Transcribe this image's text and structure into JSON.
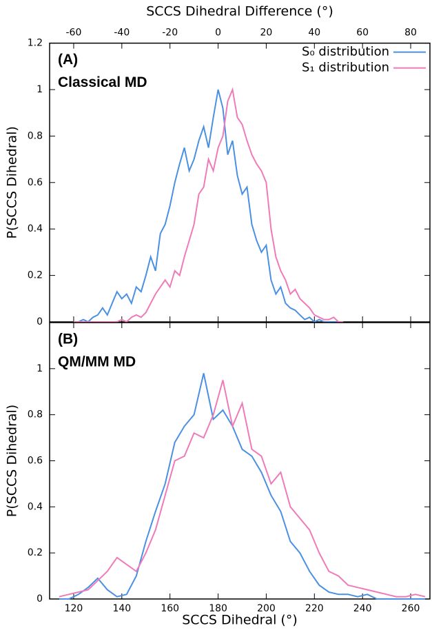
{
  "chart_data": [
    {
      "type": "line",
      "panel_label": "(A)",
      "subtitle": "Classical MD",
      "xlabel": "SCCS Dihedral Difference (°)",
      "xaxis_position": "top",
      "ylabel": "P(SCCS Dihedral)",
      "xlim": [
        -70,
        88
      ],
      "xticks": [
        -60,
        -40,
        -20,
        0,
        20,
        40,
        60,
        80
      ],
      "ylim": [
        0,
        1.2
      ],
      "yticks": [
        0,
        0.2,
        0.4,
        0.6,
        0.8,
        1,
        1.2
      ],
      "legend": "upper right",
      "x": [
        -60,
        -58,
        -56,
        -54,
        -52,
        -50,
        -48,
        -46,
        -44,
        -42,
        -40,
        -38,
        -36,
        -34,
        -32,
        -30,
        -28,
        -26,
        -24,
        -22,
        -20,
        -18,
        -16,
        -14,
        -12,
        -10,
        -8,
        -6,
        -4,
        -2,
        0,
        2,
        4,
        6,
        8,
        10,
        12,
        14,
        16,
        18,
        20,
        22,
        24,
        26,
        28,
        30,
        32,
        34,
        36,
        38,
        40,
        42,
        44,
        46,
        48,
        50,
        52
      ],
      "series": [
        {
          "name": "S₀ distribution",
          "color": "#4a90e2",
          "values": [
            0,
            0,
            0.01,
            0,
            0.02,
            0.03,
            0.06,
            0.03,
            0.08,
            0.13,
            0.1,
            0.12,
            0.08,
            0.15,
            0.13,
            0.2,
            0.28,
            0.22,
            0.38,
            0.42,
            0.5,
            0.6,
            0.68,
            0.75,
            0.65,
            0.7,
            0.78,
            0.84,
            0.75,
            0.88,
            1,
            0.92,
            0.72,
            0.78,
            0.63,
            0.55,
            0.58,
            0.42,
            0.35,
            0.3,
            0.33,
            0.18,
            0.12,
            0.15,
            0.08,
            0.06,
            0.05,
            0.03,
            0.01,
            0.02,
            0,
            0.01,
            0,
            0,
            0,
            0,
            0
          ]
        },
        {
          "name": "S₁ distribution",
          "color": "#f07ab8",
          "values": [
            0,
            0,
            0,
            0,
            0,
            0,
            0,
            0,
            0,
            0,
            0.01,
            0,
            0.02,
            0.03,
            0.02,
            0.04,
            0.08,
            0.12,
            0.15,
            0.18,
            0.15,
            0.22,
            0.2,
            0.28,
            0.35,
            0.42,
            0.55,
            0.58,
            0.7,
            0.65,
            0.75,
            0.8,
            0.95,
            1,
            0.88,
            0.85,
            0.78,
            0.72,
            0.68,
            0.65,
            0.6,
            0.4,
            0.28,
            0.22,
            0.18,
            0.12,
            0.14,
            0.1,
            0.08,
            0.06,
            0.03,
            0.02,
            0.01,
            0.01,
            0.02,
            0,
            0
          ]
        }
      ]
    },
    {
      "type": "line",
      "panel_label": "(B)",
      "subtitle": "QM/MM MD",
      "xlabel": "SCCS Dihedral (°)",
      "xaxis_position": "bottom",
      "ylabel": "P(SCCS Dihedral)",
      "xlim": [
        110,
        268
      ],
      "xticks": [
        120,
        140,
        160,
        180,
        200,
        220,
        240,
        260
      ],
      "ylim": [
        0,
        1.2
      ],
      "yticks": [
        0,
        0.2,
        0.4,
        0.6,
        0.8,
        1
      ],
      "x": [
        114,
        118,
        122,
        126,
        130,
        134,
        138,
        142,
        146,
        150,
        154,
        158,
        162,
        166,
        170,
        174,
        178,
        182,
        186,
        190,
        194,
        198,
        202,
        206,
        210,
        214,
        218,
        222,
        226,
        230,
        234,
        238,
        242,
        246,
        250,
        254,
        258,
        262,
        266
      ],
      "series": [
        {
          "color": "#4a90e2",
          "values": [
            0,
            0,
            0.02,
            0.05,
            0.09,
            0.04,
            0.01,
            0.02,
            0.1,
            0.25,
            0.38,
            0.5,
            0.68,
            0.75,
            0.8,
            0.98,
            0.78,
            0.82,
            0.75,
            0.65,
            0.62,
            0.55,
            0.45,
            0.38,
            0.25,
            0.2,
            0.12,
            0.06,
            0.03,
            0.02,
            0.02,
            0.01,
            0.02,
            0,
            0,
            0,
            0,
            0,
            0
          ]
        },
        {
          "color": "#f07ab8",
          "values": [
            0.01,
            0.02,
            0.03,
            0.04,
            0.08,
            0.12,
            0.18,
            0.15,
            0.12,
            0.2,
            0.3,
            0.45,
            0.6,
            0.62,
            0.72,
            0.7,
            0.8,
            0.95,
            0.75,
            0.85,
            0.65,
            0.62,
            0.5,
            0.55,
            0.4,
            0.35,
            0.3,
            0.2,
            0.12,
            0.1,
            0.06,
            0.05,
            0.04,
            0.03,
            0.02,
            0.01,
            0.01,
            0.02,
            0.01
          ]
        }
      ]
    }
  ]
}
